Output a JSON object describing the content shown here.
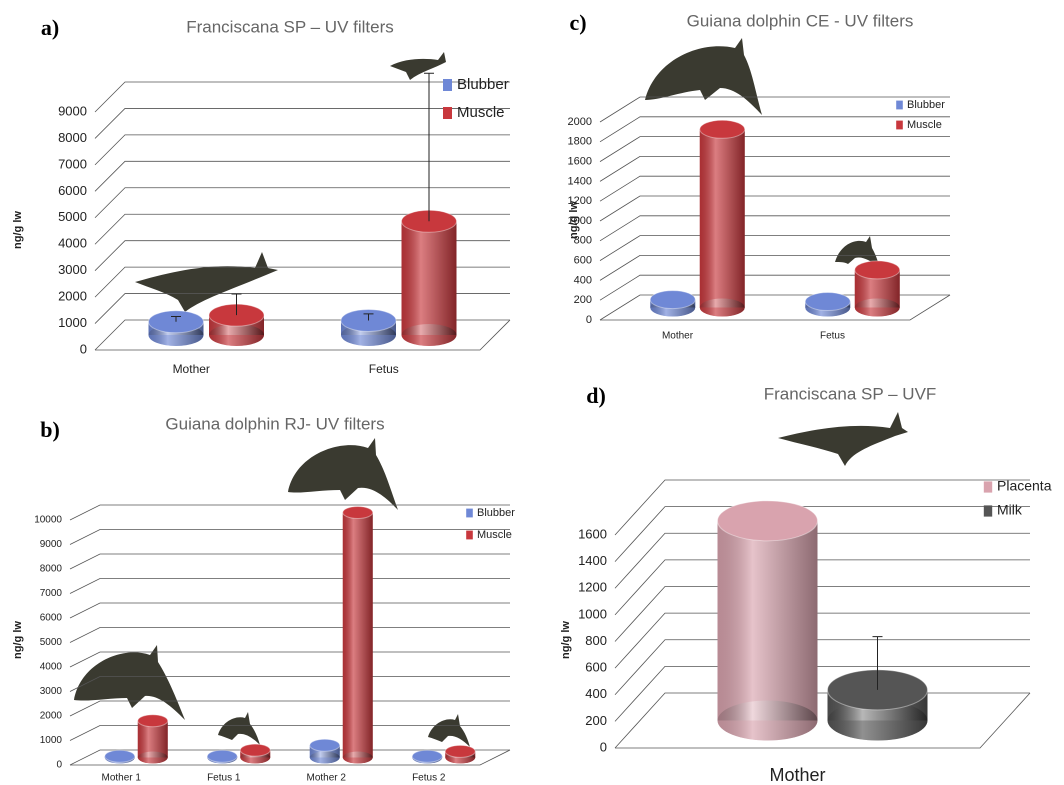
{
  "chart_data": [
    {
      "type": "bar3d",
      "panel": "a)",
      "title": "Franciscana SP – UV filters",
      "ylabel": "ng/g lw",
      "categories": [
        "Mother",
        "Fetus"
      ],
      "series": [
        {
          "name": "Blubber",
          "color": "#6f88d6",
          "values": [
            500,
            550
          ],
          "errors": [
            200,
            250
          ]
        },
        {
          "name": "Muscle",
          "color": "#c8383d",
          "values": [
            750,
            4300
          ],
          "errors": [
            800,
            5600
          ]
        }
      ],
      "ylim": [
        0,
        9000
      ],
      "yticks": [
        0,
        1000,
        2000,
        3000,
        4000,
        5000,
        6000,
        7000,
        8000,
        9000
      ],
      "grid": true,
      "legend": "upper right"
    },
    {
      "type": "bar3d",
      "panel": "b)",
      "title": "Guiana dolphin RJ- UV filters",
      "ylabel": "ng/g lw",
      "categories": [
        "Mother 1",
        "Fetus 1",
        "Mother 2",
        "Fetus 2"
      ],
      "series": [
        {
          "name": "Blubber",
          "color": "#6f88d6",
          "values": [
            50,
            50,
            500,
            50
          ]
        },
        {
          "name": "Muscle",
          "color": "#c8383d",
          "values": [
            1500,
            300,
            10000,
            250
          ]
        }
      ],
      "ylim": [
        0,
        10000
      ],
      "yticks": [
        0,
        1000,
        2000,
        3000,
        4000,
        5000,
        6000,
        7000,
        8000,
        9000,
        10000
      ],
      "grid": true,
      "legend": "upper right"
    },
    {
      "type": "bar3d",
      "panel": "c)",
      "title": "Guiana dolphin CE - UV filters",
      "ylabel": "ng/g lw",
      "categories": [
        "Mother",
        "Fetus"
      ],
      "series": [
        {
          "name": "Blubber",
          "color": "#6f88d6",
          "values": [
            80,
            60
          ]
        },
        {
          "name": "Muscle",
          "color": "#c8383d",
          "values": [
            1800,
            380
          ]
        }
      ],
      "ylim": [
        0,
        2000
      ],
      "yticks": [
        0,
        200,
        400,
        600,
        800,
        1000,
        1200,
        1400,
        1600,
        1800,
        2000
      ],
      "grid": true,
      "legend": "upper right"
    },
    {
      "type": "bar3d",
      "panel": "d)",
      "title": "Franciscana SP – UVF",
      "ylabel": "ng/g lw",
      "categories": [
        "Mother"
      ],
      "series": [
        {
          "name": "Placenta",
          "color": "#d9a3ae",
          "values": [
            1500
          ]
        },
        {
          "name": "Milk",
          "color": "#555555",
          "values": [
            230
          ],
          "errors": [
            400
          ]
        }
      ],
      "ylim": [
        0,
        1600
      ],
      "yticks": [
        0,
        200,
        400,
        600,
        800,
        1000,
        1200,
        1400,
        1600
      ],
      "grid": true,
      "legend": "upper right"
    }
  ]
}
